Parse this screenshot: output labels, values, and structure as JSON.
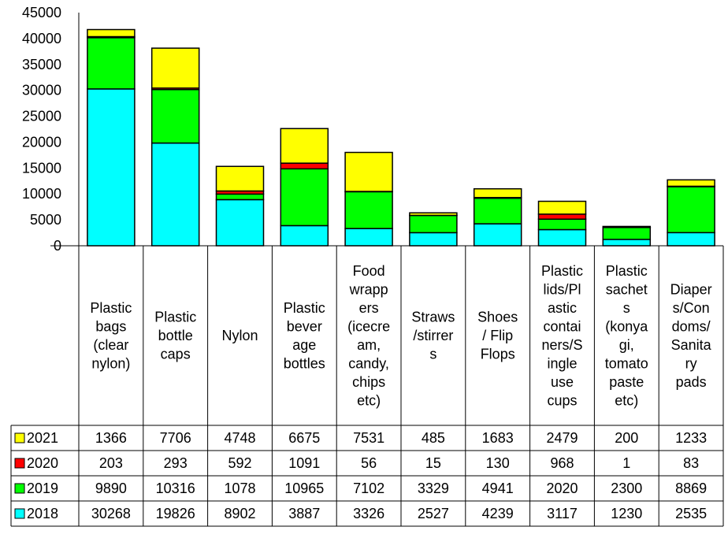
{
  "chart_data": {
    "type": "bar",
    "stacked": true,
    "title": "",
    "xlabel": "",
    "ylabel": "",
    "ylim": [
      0,
      45000
    ],
    "yticks": [
      0,
      5000,
      10000,
      15000,
      20000,
      25000,
      30000,
      35000,
      40000,
      45000
    ],
    "grid": false,
    "legend": "data-table-left",
    "categories": [
      [
        "Plastic",
        "bags",
        "(clear",
        "nylon)"
      ],
      [
        "Plastic",
        "bottle",
        "caps"
      ],
      [
        "Nylon"
      ],
      [
        "Plastic",
        "bever",
        "age",
        "bottles"
      ],
      [
        "Food",
        "wrapp",
        "ers",
        "(icecre",
        "am,",
        "candy,",
        "chips",
        "etc)"
      ],
      [
        "Straws",
        "/stirrer",
        "s"
      ],
      [
        "Shoes",
        "/ Flip",
        "Flops"
      ],
      [
        "Plastic",
        "lids/Pl",
        "astic",
        "contai",
        "ners/S",
        "ingle",
        "use",
        "cups"
      ],
      [
        "Plastic",
        "sachet",
        "s",
        "(konya",
        "gi,",
        "tomato",
        "paste",
        "etc)"
      ],
      [
        "Diaper",
        "s/Con",
        "doms/",
        "Sanita",
        "ry",
        "pads"
      ]
    ],
    "series": [
      {
        "name": "2018",
        "color": "#00FFFF",
        "values": [
          30268,
          19826,
          8902,
          3887,
          3326,
          2527,
          4239,
          3117,
          1230,
          2535
        ]
      },
      {
        "name": "2019",
        "color": "#00FF00",
        "values": [
          9890,
          10316,
          1078,
          10965,
          7102,
          3329,
          4941,
          2020,
          2300,
          8869
        ]
      },
      {
        "name": "2020",
        "color": "#FF0000",
        "values": [
          203,
          293,
          592,
          1091,
          56,
          15,
          130,
          968,
          1,
          83
        ]
      },
      {
        "name": "2021",
        "color": "#FFFF00",
        "values": [
          1366,
          7706,
          4748,
          6675,
          7531,
          485,
          1683,
          2479,
          200,
          1233
        ]
      }
    ],
    "table_row_order": [
      "2021",
      "2020",
      "2019",
      "2018"
    ]
  }
}
